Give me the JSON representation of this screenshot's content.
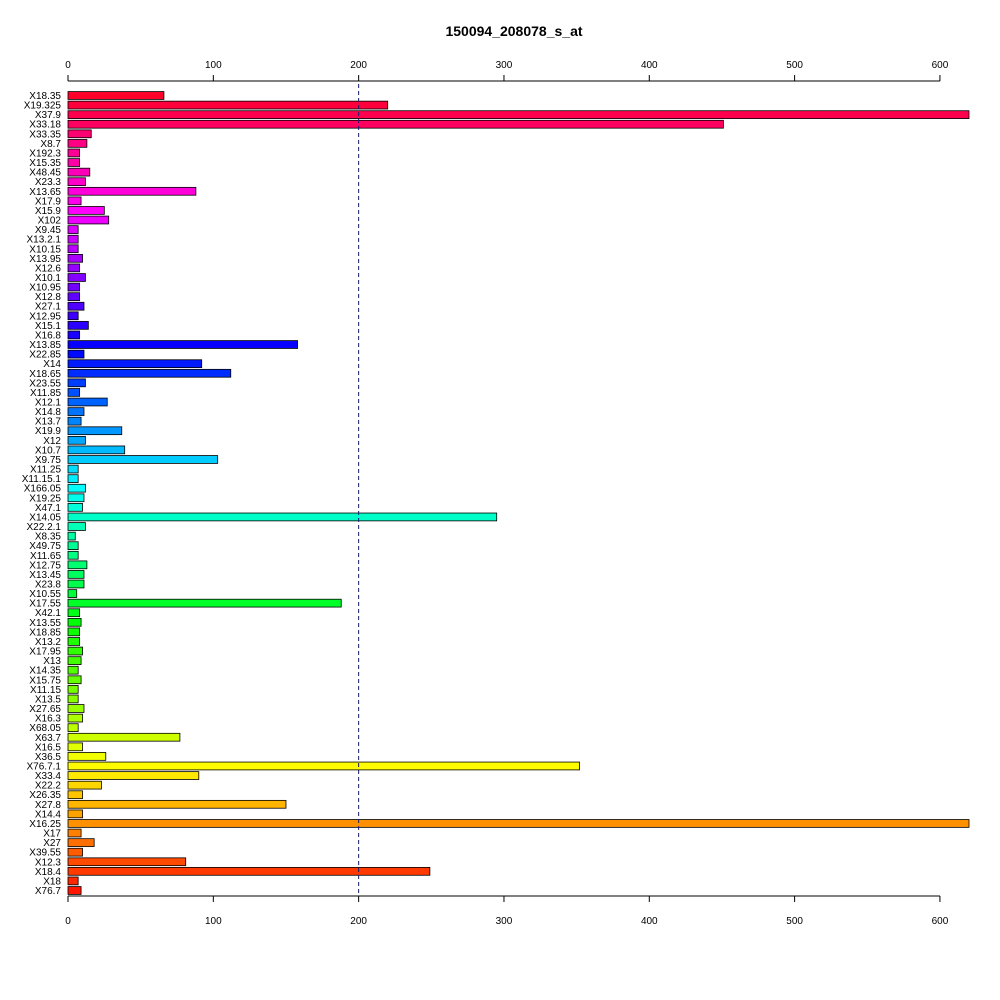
{
  "chart_data": {
    "type": "bar",
    "orientation": "horizontal",
    "title": "150094_208078_s_at",
    "xlabel": "",
    "ylabel": "",
    "xlim": [
      0,
      620
    ],
    "x_ticks": [
      0,
      100,
      200,
      300,
      400,
      500,
      600
    ],
    "x_tick_labels": [
      "0",
      "100",
      "200",
      "300",
      "400",
      "500",
      "600"
    ],
    "reference_line": {
      "value": 200,
      "style": "dashed",
      "color": "#1a1a6e"
    },
    "grid": false,
    "legend": "none",
    "categories": [
      "X18.35",
      "X19.325",
      "X37.9",
      "X33.18",
      "X33.35",
      "X8.7",
      "X192.3",
      "X15.35",
      "X48.45",
      "X23.3",
      "X13.65",
      "X17.9",
      "X15.9",
      "X102",
      "X9.45",
      "X13.2.1",
      "X10.15",
      "X13.95",
      "X12.6",
      "X10.1",
      "X10.95",
      "X12.8",
      "X27.1",
      "X12.95",
      "X15.1",
      "X16.8",
      "X13.85",
      "X22.85",
      "X14",
      "X18.65",
      "X23.55",
      "X11.85",
      "X12.1",
      "X14.8",
      "X13.7",
      "X19.9",
      "X12",
      "X10.7",
      "X9.75",
      "X11.25",
      "X11.15.1",
      "X166.05",
      "X19.25",
      "X47.1",
      "X14.05",
      "X22.2.1",
      "X8.35",
      "X49.75",
      "X11.65",
      "X12.75",
      "X13.45",
      "X23.8",
      "X10.55",
      "X17.55",
      "X42.1",
      "X13.55",
      "X18.85",
      "X13.2",
      "X17.95",
      "X13",
      "X14.35",
      "X15.75",
      "X11.15",
      "X13.5",
      "X27.65",
      "X16.3",
      "X68.05",
      "X63.7",
      "X16.5",
      "X36.5",
      "X76.7.1",
      "X33.4",
      "X22.2",
      "X26.35",
      "X27.8",
      "X14.4",
      "X16.25",
      "X17",
      "X27",
      "X39.55",
      "X12.3",
      "X18.4",
      "X18",
      "X76.7"
    ],
    "values": [
      66,
      220,
      620,
      451,
      16,
      13,
      8,
      8,
      15,
      12,
      88,
      9,
      25,
      28,
      7,
      7,
      7,
      10,
      8,
      12,
      8,
      8,
      11,
      7,
      14,
      8,
      158,
      11,
      92,
      112,
      12,
      8,
      27,
      11,
      9,
      37,
      12,
      39,
      103,
      7,
      7,
      12,
      11,
      10,
      295,
      12,
      5,
      7,
      7,
      13,
      11,
      11,
      6,
      188,
      8,
      9,
      8,
      8,
      10,
      9,
      7,
      9,
      7,
      7,
      11,
      10,
      7,
      77,
      10,
      26,
      352,
      90,
      23,
      10,
      150,
      10,
      620,
      9,
      18,
      10,
      81,
      249,
      7,
      9
    ]
  }
}
